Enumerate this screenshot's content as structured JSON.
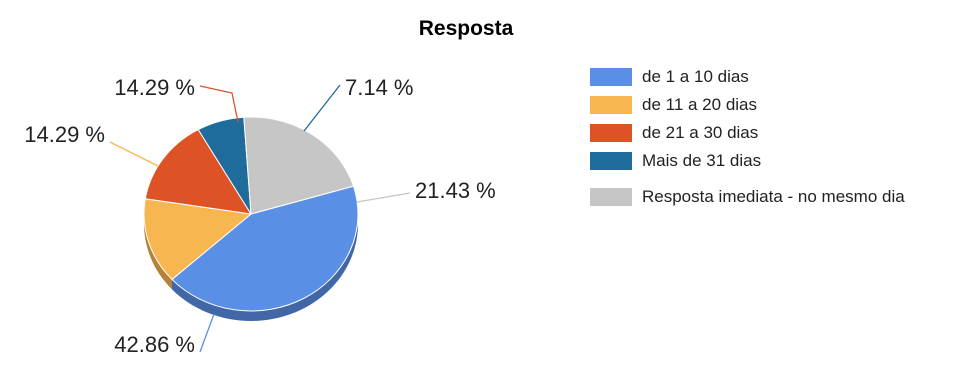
{
  "chart_data": {
    "type": "pie",
    "title": "Resposta",
    "legend_position": "right",
    "three_d": true,
    "slices": [
      {
        "name": "de 1 a 10 dias",
        "value": 42.86,
        "label": "42.86 %",
        "color": "#5a8fe6"
      },
      {
        "name": "de 11 a 20 dias",
        "value": 14.29,
        "label": "14.29 %",
        "color": "#f8b651"
      },
      {
        "name": "de 21 a 30 dias",
        "value": 14.29,
        "label": "14.29 %",
        "color": "#dd5325"
      },
      {
        "name": "Mais de 31 dias",
        "value": 7.14,
        "label": "7.14 %",
        "color": "#1f6c9c"
      },
      {
        "name": "Resposta imediata - no mesmo dia",
        "value": 21.43,
        "label": "21.43 %",
        "color": "#c6c6c6"
      }
    ]
  }
}
